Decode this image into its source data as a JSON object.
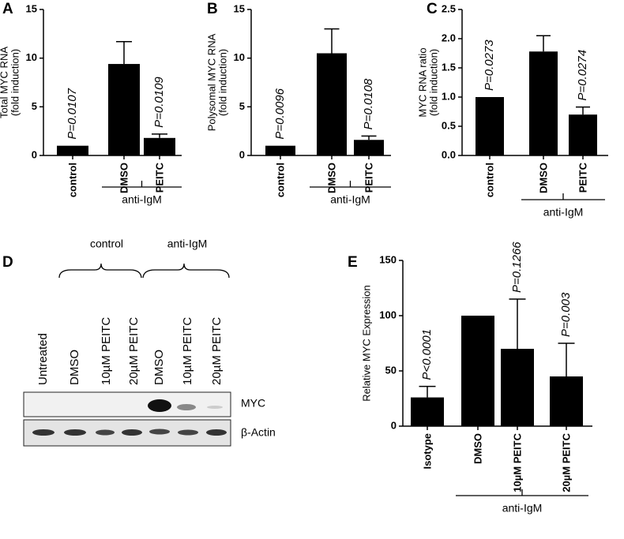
{
  "chart_data": [
    {
      "type": "bar",
      "label": "A",
      "y_label": [
        "Total MYC RNA",
        "(fold induction)"
      ],
      "categories": [
        "control",
        "DMSO",
        "PEITC"
      ],
      "values": [
        1,
        9.4,
        1.8
      ],
      "errors": [
        null,
        2.3,
        0.4
      ],
      "annotations": [
        "P=0.0107",
        null,
        "P=0.0109"
      ],
      "group_label": "anti-IgM",
      "color": "#000000",
      "ylim": [
        0,
        15
      ],
      "yticks": [
        0,
        5,
        10,
        15
      ]
    },
    {
      "type": "bar",
      "label": "B",
      "y_label": [
        "Polysomal MYC RNA",
        "(fold induction)"
      ],
      "categories": [
        "control",
        "DMSO",
        "PEITC"
      ],
      "values": [
        1,
        10.5,
        1.6
      ],
      "errors": [
        null,
        2.5,
        0.4
      ],
      "annotations": [
        "P=0.0096",
        null,
        "P=0.0108"
      ],
      "group_label": "anti-IgM",
      "color": "#000000",
      "ylim": [
        0,
        15
      ],
      "yticks": [
        0,
        5,
        10,
        15
      ]
    },
    {
      "type": "bar",
      "label": "C",
      "y_label": [
        "MYC RNA ratio",
        "(fold induction)"
      ],
      "categories": [
        "control",
        "DMSO",
        "PEITC"
      ],
      "values": [
        1.0,
        1.78,
        0.7
      ],
      "errors": [
        null,
        0.27,
        0.13
      ],
      "annotations": [
        "P=0.0273",
        null,
        "P=0.0274"
      ],
      "group_label": "anti-IgM",
      "color": "#000000",
      "ylim": [
        0,
        2.5
      ],
      "yticks": [
        {
          "value": 0,
          "label": "0.0"
        },
        0.5,
        {
          "value": 1,
          "label": "1.0"
        },
        1.5,
        {
          "value": 2,
          "label": "2.0"
        },
        2.5
      ]
    },
    {
      "type": "bar",
      "label": "E",
      "y_label": [
        "Relative MYC Expression"
      ],
      "categories": [
        "Isotype",
        "DMSO",
        "10µM PEITC",
        "20µM PEITC"
      ],
      "values": [
        26,
        100,
        70,
        45
      ],
      "errors": [
        10,
        null,
        45,
        30
      ],
      "annotations": [
        "P<0.0001",
        null,
        "P=0.1266",
        "P=0.003"
      ],
      "group_label": "anti-IgM",
      "color": "#000000",
      "ylim": [
        0,
        150
      ],
      "yticks": [
        0,
        50,
        100,
        150
      ]
    }
  ],
  "blot": {
    "label": "D",
    "groups": [
      "control",
      "anti-IgM"
    ],
    "lanes": [
      "Untreated",
      "DMSO",
      "10µM PEITC",
      "20µM PEITC",
      "DMSO",
      "10µM PEITC",
      "20µM PEITC"
    ],
    "rows": [
      "MYC",
      "β-Actin"
    ]
  }
}
